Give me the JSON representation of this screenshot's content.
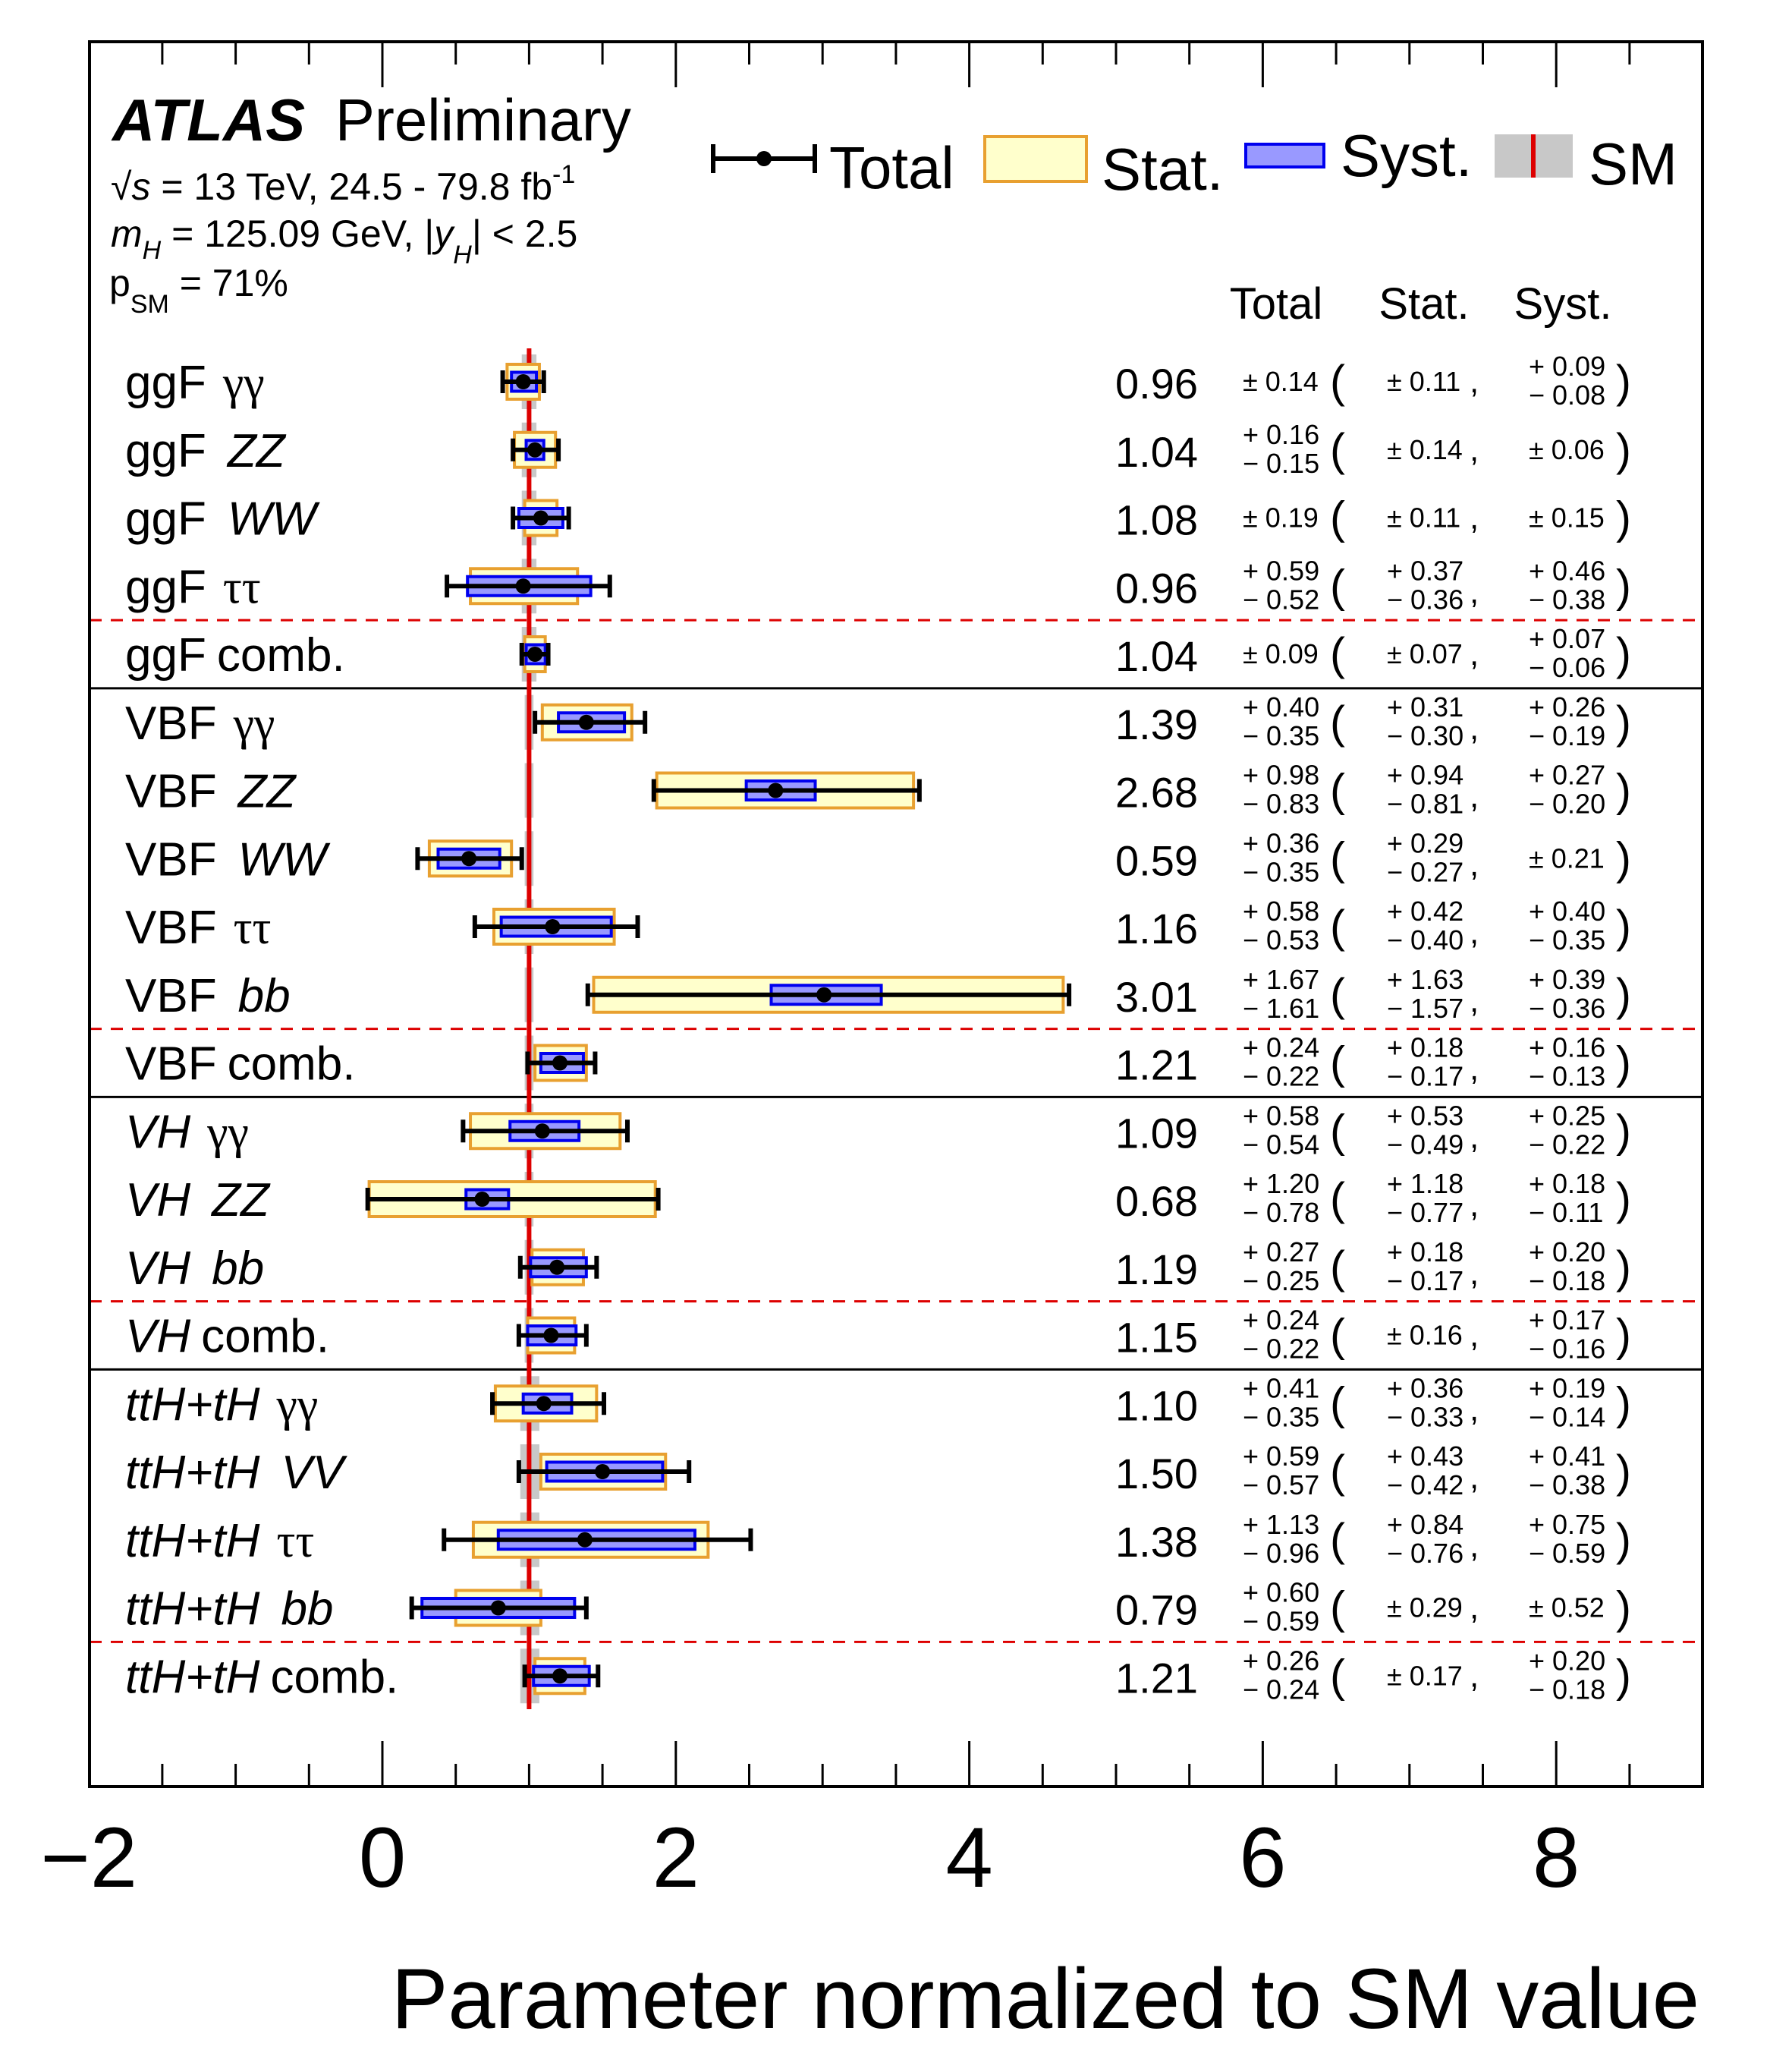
{
  "header": {
    "experiment": "ATLAS",
    "status": "Preliminary",
    "line1_sqrt": "√",
    "line1_s": "s",
    "line1_text": " = 13 TeV, 24.5 - 79.8 fb",
    "line1_sup": "-1",
    "line2_m": "m",
    "line2_msub": "H",
    "line2_text": " = 125.09 GeV, |",
    "line2_y": "y",
    "line2_ysub": "H",
    "line2_tail": "| < 2.5",
    "line3_p": "p",
    "line3_psub": "SM",
    "line3_text": " = 71%"
  },
  "legend": {
    "total": "Total",
    "stat": "Stat.",
    "syst": "Syst.",
    "sm": "SM"
  },
  "columns": {
    "total": "Total",
    "stat": "Stat.",
    "syst": "Syst."
  },
  "colors": {
    "stat_fill": "#ffffcc",
    "stat_edge": "#e8a030",
    "syst_fill": "#9999ff",
    "syst_edge": "#0000ee",
    "sm_band": "#c8c8c8",
    "sm_line": "#dd0000",
    "dashed": "#dd0000",
    "marker": "#000000"
  },
  "chart_data": {
    "type": "forest",
    "title": "ATLAS Preliminary",
    "xlabel": "Parameter normalized to SM value",
    "xlim": [
      -2,
      9
    ],
    "xticks_major": [
      -2,
      0,
      2,
      4,
      6,
      8
    ],
    "xtick_labels": [
      "−2",
      "0",
      "2",
      "4",
      "6",
      "8"
    ],
    "xtick_minor_step": 0.5,
    "sm_value": 1,
    "rows": [
      {
        "prod": "ggF",
        "decay": "γγ",
        "decay_style": "greek",
        "mu": "0.96",
        "tot": [
          "± 0.14"
        ],
        "stat": [
          "± 0.11"
        ],
        "syst": [
          "+ 0.09",
          "− 0.08"
        ],
        "v": 0.96,
        "tot_hi": 0.14,
        "tot_lo": 0.14,
        "stat_hi": 0.11,
        "stat_lo": 0.11,
        "syst_hi": 0.09,
        "syst_lo": 0.08,
        "sm_lo": 0.95,
        "sm_hi": 1.05
      },
      {
        "prod": "ggF",
        "decay": "ZZ",
        "decay_style": "italic",
        "mu": "1.04",
        "tot": [
          "+ 0.16",
          "− 0.15"
        ],
        "stat": [
          "± 0.14"
        ],
        "syst": [
          "± 0.06"
        ],
        "v": 1.04,
        "tot_hi": 0.16,
        "tot_lo": 0.15,
        "stat_hi": 0.14,
        "stat_lo": 0.14,
        "syst_hi": 0.06,
        "syst_lo": 0.06,
        "sm_lo": 0.95,
        "sm_hi": 1.05
      },
      {
        "prod": "ggF",
        "decay": "WW",
        "decay_style": "italic",
        "mu": "1.08",
        "tot": [
          "± 0.19"
        ],
        "stat": [
          "± 0.11"
        ],
        "syst": [
          "± 0.15"
        ],
        "v": 1.08,
        "tot_hi": 0.19,
        "tot_lo": 0.19,
        "stat_hi": 0.11,
        "stat_lo": 0.11,
        "syst_hi": 0.15,
        "syst_lo": 0.15,
        "sm_lo": 0.95,
        "sm_hi": 1.05
      },
      {
        "prod": "ggF",
        "decay": "ττ",
        "decay_style": "greek",
        "mu": "0.96",
        "tot": [
          "+ 0.59",
          "− 0.52"
        ],
        "stat": [
          "+ 0.37",
          "− 0.36"
        ],
        "syst": [
          "+ 0.46",
          "− 0.38"
        ],
        "v": 0.96,
        "tot_hi": 0.59,
        "tot_lo": 0.52,
        "stat_hi": 0.37,
        "stat_lo": 0.36,
        "syst_hi": 0.46,
        "syst_lo": 0.38,
        "sm_lo": 0.95,
        "sm_hi": 1.05
      },
      {
        "prod": "ggF",
        "decay": "comb.",
        "decay_style": "plain",
        "mu": "1.04",
        "tot": [
          "± 0.09"
        ],
        "stat": [
          "± 0.07"
        ],
        "syst": [
          "+ 0.07",
          "− 0.06"
        ],
        "v": 1.04,
        "tot_hi": 0.09,
        "tot_lo": 0.09,
        "stat_hi": 0.07,
        "stat_lo": 0.07,
        "syst_hi": 0.07,
        "syst_lo": 0.06,
        "sm_lo": 0.95,
        "sm_hi": 1.05
      },
      {
        "prod": "VBF",
        "decay": "γγ",
        "decay_style": "greek",
        "mu": "1.39",
        "tot": [
          "+ 0.40",
          "− 0.35"
        ],
        "stat": [
          "+ 0.31",
          "− 0.30"
        ],
        "syst": [
          "+ 0.26",
          "− 0.19"
        ],
        "v": 1.39,
        "tot_hi": 0.4,
        "tot_lo": 0.35,
        "stat_hi": 0.31,
        "stat_lo": 0.3,
        "syst_hi": 0.26,
        "syst_lo": 0.19,
        "sm_lo": 0.97,
        "sm_hi": 1.03
      },
      {
        "prod": "VBF",
        "decay": "ZZ",
        "decay_style": "italic",
        "mu": "2.68",
        "tot": [
          "+ 0.98",
          "− 0.83"
        ],
        "stat": [
          "+ 0.94",
          "− 0.81"
        ],
        "syst": [
          "+ 0.27",
          "− 0.20"
        ],
        "v": 2.68,
        "tot_hi": 0.98,
        "tot_lo": 0.83,
        "stat_hi": 0.94,
        "stat_lo": 0.81,
        "syst_hi": 0.27,
        "syst_lo": 0.2,
        "sm_lo": 0.97,
        "sm_hi": 1.03
      },
      {
        "prod": "VBF",
        "decay": "WW",
        "decay_style": "italic",
        "mu": "0.59",
        "tot": [
          "+ 0.36",
          "− 0.35"
        ],
        "stat": [
          "+ 0.29",
          "− 0.27"
        ],
        "syst": [
          "± 0.21"
        ],
        "v": 0.59,
        "tot_hi": 0.36,
        "tot_lo": 0.35,
        "stat_hi": 0.29,
        "stat_lo": 0.27,
        "syst_hi": 0.21,
        "syst_lo": 0.21,
        "sm_lo": 0.97,
        "sm_hi": 1.03
      },
      {
        "prod": "VBF",
        "decay": "ττ",
        "decay_style": "greek",
        "mu": "1.16",
        "tot": [
          "+ 0.58",
          "− 0.53"
        ],
        "stat": [
          "+ 0.42",
          "− 0.40"
        ],
        "syst": [
          "+ 0.40",
          "− 0.35"
        ],
        "v": 1.16,
        "tot_hi": 0.58,
        "tot_lo": 0.53,
        "stat_hi": 0.42,
        "stat_lo": 0.4,
        "syst_hi": 0.4,
        "syst_lo": 0.35,
        "sm_lo": 0.97,
        "sm_hi": 1.03
      },
      {
        "prod": "VBF",
        "decay": "bb",
        "decay_style": "italic",
        "mu": "3.01",
        "tot": [
          "+ 1.67",
          "− 1.61"
        ],
        "stat": [
          "+ 1.63",
          "− 1.57"
        ],
        "syst": [
          "+ 0.39",
          "− 0.36"
        ],
        "v": 3.01,
        "tot_hi": 1.67,
        "tot_lo": 1.61,
        "stat_hi": 1.63,
        "stat_lo": 1.57,
        "syst_hi": 0.39,
        "syst_lo": 0.36,
        "sm_lo": 0.97,
        "sm_hi": 1.03
      },
      {
        "prod": "VBF",
        "decay": "comb.",
        "decay_style": "plain",
        "mu": "1.21",
        "tot": [
          "+ 0.24",
          "− 0.22"
        ],
        "stat": [
          "+ 0.18",
          "− 0.17"
        ],
        "syst": [
          "+ 0.16",
          "− 0.13"
        ],
        "v": 1.21,
        "tot_hi": 0.24,
        "tot_lo": 0.22,
        "stat_hi": 0.18,
        "stat_lo": 0.17,
        "syst_hi": 0.16,
        "syst_lo": 0.13,
        "sm_lo": 0.97,
        "sm_hi": 1.03
      },
      {
        "prod": "VH",
        "prod_style": "italic",
        "decay": "γγ",
        "decay_style": "greek",
        "mu": "1.09",
        "tot": [
          "+ 0.58",
          "− 0.54"
        ],
        "stat": [
          "+ 0.53",
          "− 0.49"
        ],
        "syst": [
          "+ 0.25",
          "− 0.22"
        ],
        "v": 1.09,
        "tot_hi": 0.58,
        "tot_lo": 0.54,
        "stat_hi": 0.53,
        "stat_lo": 0.49,
        "syst_hi": 0.25,
        "syst_lo": 0.22,
        "sm_lo": 0.97,
        "sm_hi": 1.03
      },
      {
        "prod": "VH",
        "prod_style": "italic",
        "decay": "ZZ",
        "decay_style": "italic",
        "mu": "0.68",
        "tot": [
          "+ 1.20",
          "− 0.78"
        ],
        "stat": [
          "+ 1.18",
          "− 0.77"
        ],
        "syst": [
          "+ 0.18",
          "− 0.11"
        ],
        "v": 0.68,
        "tot_hi": 1.2,
        "tot_lo": 0.78,
        "stat_hi": 1.18,
        "stat_lo": 0.77,
        "syst_hi": 0.18,
        "syst_lo": 0.11,
        "sm_lo": 0.97,
        "sm_hi": 1.03
      },
      {
        "prod": "VH",
        "prod_style": "italic",
        "decay": "bb",
        "decay_style": "italic",
        "mu": "1.19",
        "tot": [
          "+ 0.27",
          "− 0.25"
        ],
        "stat": [
          "+ 0.18",
          "− 0.17"
        ],
        "syst": [
          "+ 0.20",
          "− 0.18"
        ],
        "v": 1.19,
        "tot_hi": 0.27,
        "tot_lo": 0.25,
        "stat_hi": 0.18,
        "stat_lo": 0.17,
        "syst_hi": 0.2,
        "syst_lo": 0.18,
        "sm_lo": 0.97,
        "sm_hi": 1.03
      },
      {
        "prod": "VH",
        "prod_style": "italic",
        "decay": "comb.",
        "decay_style": "plain",
        "mu": "1.15",
        "tot": [
          "+ 0.24",
          "− 0.22"
        ],
        "stat": [
          "± 0.16"
        ],
        "syst": [
          "+ 0.17",
          "− 0.16"
        ],
        "v": 1.15,
        "tot_hi": 0.24,
        "tot_lo": 0.22,
        "stat_hi": 0.16,
        "stat_lo": 0.16,
        "syst_hi": 0.17,
        "syst_lo": 0.16,
        "sm_lo": 0.97,
        "sm_hi": 1.03
      },
      {
        "prod": "ttH+tH",
        "prod_style": "italic",
        "decay": "γγ",
        "decay_style": "greek",
        "mu": "1.10",
        "tot": [
          "+ 0.41",
          "− 0.35"
        ],
        "stat": [
          "+ 0.36",
          "− 0.33"
        ],
        "syst": [
          "+ 0.19",
          "− 0.14"
        ],
        "v": 1.1,
        "tot_hi": 0.41,
        "tot_lo": 0.35,
        "stat_hi": 0.36,
        "stat_lo": 0.33,
        "syst_hi": 0.19,
        "syst_lo": 0.14,
        "sm_lo": 0.94,
        "sm_hi": 1.07
      },
      {
        "prod": "ttH+tH",
        "prod_style": "italic",
        "decay": "VV",
        "decay_style": "italic",
        "mu": "1.50",
        "tot": [
          "+ 0.59",
          "− 0.57"
        ],
        "stat": [
          "+ 0.43",
          "− 0.42"
        ],
        "syst": [
          "+ 0.41",
          "− 0.38"
        ],
        "v": 1.5,
        "tot_hi": 0.59,
        "tot_lo": 0.57,
        "stat_hi": 0.43,
        "stat_lo": 0.42,
        "syst_hi": 0.41,
        "syst_lo": 0.38,
        "sm_lo": 0.94,
        "sm_hi": 1.07
      },
      {
        "prod": "ttH+tH",
        "prod_style": "italic",
        "decay": "ττ",
        "decay_style": "greek",
        "mu": "1.38",
        "tot": [
          "+ 1.13",
          "− 0.96"
        ],
        "stat": [
          "+ 0.84",
          "− 0.76"
        ],
        "syst": [
          "+ 0.75",
          "− 0.59"
        ],
        "v": 1.38,
        "tot_hi": 1.13,
        "tot_lo": 0.96,
        "stat_hi": 0.84,
        "stat_lo": 0.76,
        "syst_hi": 0.75,
        "syst_lo": 0.59,
        "sm_lo": 0.94,
        "sm_hi": 1.07
      },
      {
        "prod": "ttH+tH",
        "prod_style": "italic",
        "decay": "bb",
        "decay_style": "italic",
        "mu": "0.79",
        "tot": [
          "+ 0.60",
          "− 0.59"
        ],
        "stat": [
          "± 0.29"
        ],
        "syst": [
          "± 0.52"
        ],
        "v": 0.79,
        "tot_hi": 0.6,
        "tot_lo": 0.59,
        "stat_hi": 0.29,
        "stat_lo": 0.29,
        "syst_hi": 0.52,
        "syst_lo": 0.52,
        "sm_lo": 0.94,
        "sm_hi": 1.07
      },
      {
        "prod": "ttH+tH",
        "prod_style": "italic",
        "decay": "comb.",
        "decay_style": "plain",
        "mu": "1.21",
        "tot": [
          "+ 0.26",
          "− 0.24"
        ],
        "stat": [
          "± 0.17"
        ],
        "syst": [
          "+ 0.20",
          "− 0.18"
        ],
        "v": 1.21,
        "tot_hi": 0.26,
        "tot_lo": 0.24,
        "stat_hi": 0.17,
        "stat_lo": 0.17,
        "syst_hi": 0.2,
        "syst_lo": 0.18,
        "sm_lo": 0.94,
        "sm_hi": 1.07
      }
    ],
    "separators": [
      {
        "after_row": 3,
        "style": "dashed"
      },
      {
        "after_row": 4,
        "style": "solid"
      },
      {
        "after_row": 9,
        "style": "dashed"
      },
      {
        "after_row": 10,
        "style": "solid"
      },
      {
        "after_row": 13,
        "style": "dashed"
      },
      {
        "after_row": 14,
        "style": "solid"
      },
      {
        "after_row": 18,
        "style": "dashed"
      }
    ]
  }
}
